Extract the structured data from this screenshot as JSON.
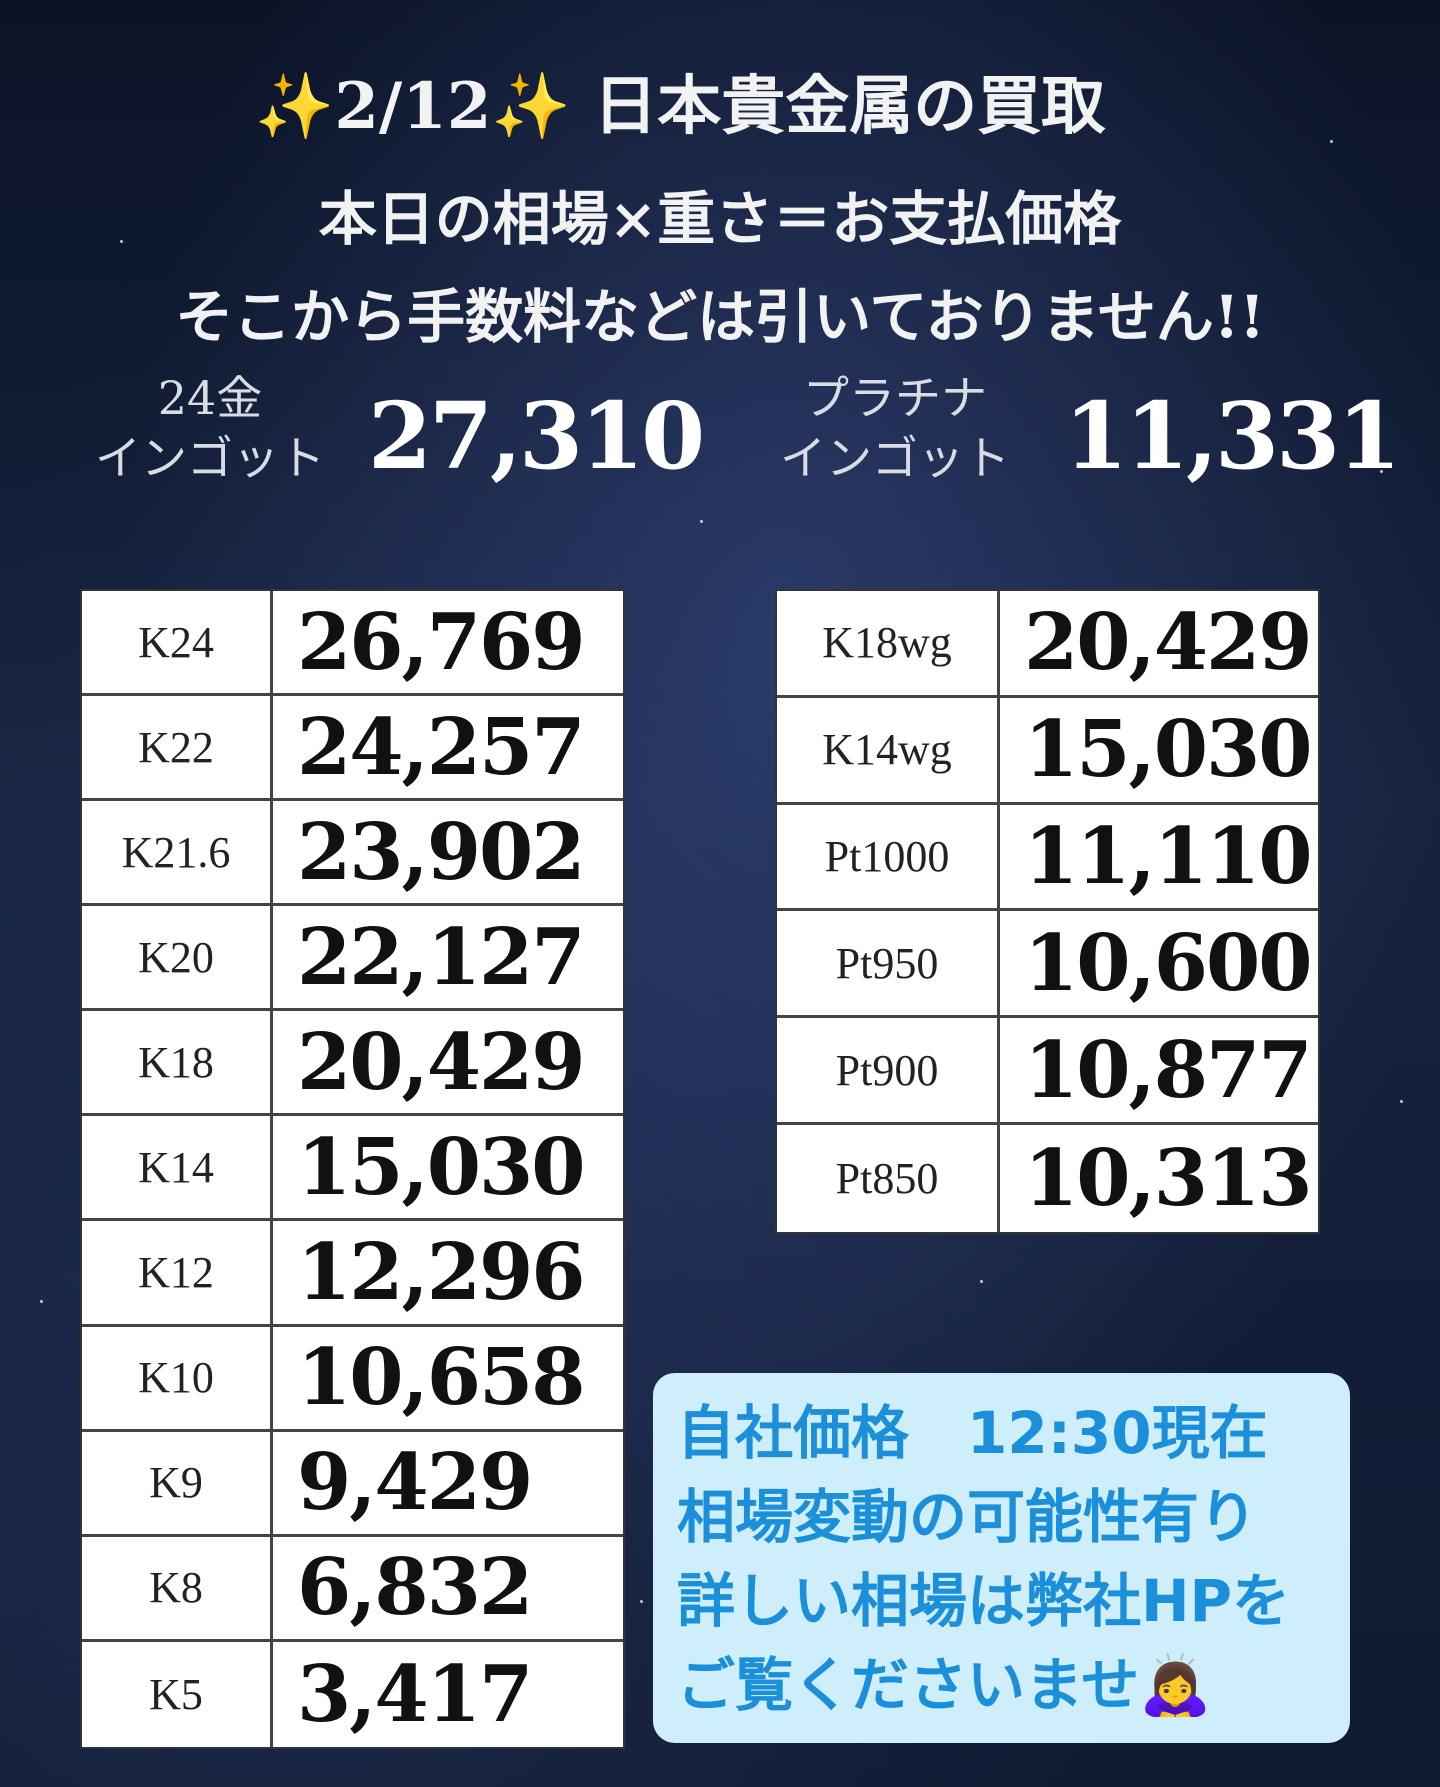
{
  "header": {
    "title": "✨2/12✨ 日本貴金属の買取",
    "line1": "本日の相場×重さ＝お支払価格",
    "line2": "そこから手数料などは引いておりません!!"
  },
  "ingots": [
    {
      "label1": "24金",
      "label2": "インゴット",
      "price": "27,310"
    },
    {
      "label1": "プラチナ",
      "label2": "インゴット",
      "price": "11,331"
    }
  ],
  "gold_table": {
    "rows": [
      [
        "K24",
        "26,769"
      ],
      [
        "K22",
        "24,257"
      ],
      [
        "K21.6",
        "23,902"
      ],
      [
        "K20",
        "22,127"
      ],
      [
        "K18",
        "20,429"
      ],
      [
        "K14",
        "15,030"
      ],
      [
        "K12",
        "12,296"
      ],
      [
        "K10",
        "10,658"
      ],
      [
        "K9",
        "9,429"
      ],
      [
        "K8",
        "6,832"
      ],
      [
        "K5",
        "3,417"
      ]
    ]
  },
  "platinum_table": {
    "rows": [
      [
        "K18wg",
        "20,429"
      ],
      [
        "K14wg",
        "15,030"
      ],
      [
        "Pt1000",
        "11,110"
      ],
      [
        "Pt950",
        "10,600"
      ],
      [
        "Pt900",
        "10,877"
      ],
      [
        "Pt850",
        "10,313"
      ]
    ]
  },
  "note": {
    "lines": [
      "自社価格　12:30現在",
      "相場変動の可能性有り",
      "詳しい相場は弊社HPを",
      "ご覧くださいませ🙇‍♀️"
    ]
  }
}
